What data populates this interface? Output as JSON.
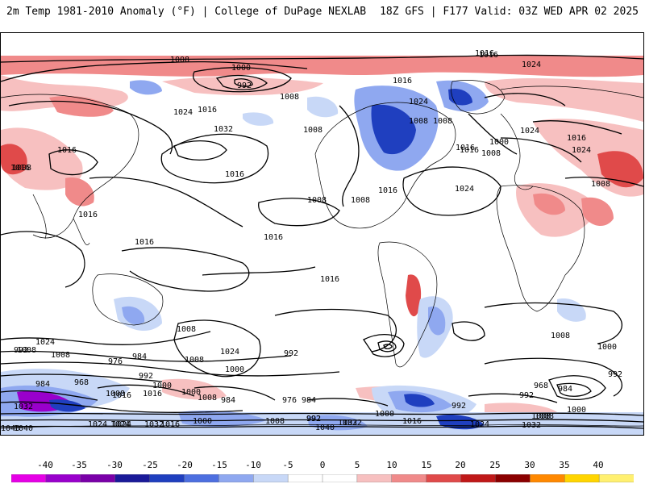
{
  "header": {
    "left_title": "2m Temp 1981-2010 Anomaly (°F) | College of DuPage NEXLAB",
    "right_title": "18Z GFS | F177 Valid: 03Z WED APR 02 2025"
  },
  "colorbar": {
    "ticks": [
      "-40",
      "-35",
      "-30",
      "-25",
      "-20",
      "-15",
      "-10",
      "-5",
      "0",
      "5",
      "10",
      "15",
      "20",
      "25",
      "30",
      "35",
      "40"
    ],
    "colors": [
      "#e600e6",
      "#9900cc",
      "#7a00a8",
      "#1a1a99",
      "#1f3fbf",
      "#4d6fe0",
      "#8fa8f0",
      "#c8d8f7",
      "#ffffff",
      "#ffffff",
      "#f7c0c0",
      "#f08a8a",
      "#e04a4a",
      "#c01818",
      "#8b0000",
      "#ff8800",
      "#ffd500",
      "#fff070"
    ]
  },
  "map": {
    "colors": {
      "warm_light": "#f7c0c0",
      "warm_mid": "#f08a8a",
      "warm_strong": "#e04a4a",
      "cold_light": "#c8d8f7",
      "cold_mid": "#8fa8f0",
      "cold_strong": "#1f3fbf",
      "cold_extreme": "#9900cc",
      "isobar": "#000000",
      "coast": "#000000"
    },
    "isobar_labels": [
      {
        "text": "1016"
      },
      {
        "text": "1024"
      },
      {
        "text": "1008"
      },
      {
        "text": "1000"
      },
      {
        "text": "992"
      },
      {
        "text": "1008"
      },
      {
        "text": "1008"
      },
      {
        "text": "1016"
      },
      {
        "text": "1024"
      },
      {
        "text": "1032"
      },
      {
        "text": "1016"
      },
      {
        "text": "1008"
      },
      {
        "text": "1016"
      },
      {
        "text": "1008"
      },
      {
        "text": "1016"
      },
      {
        "text": "1024"
      },
      {
        "text": "1016"
      },
      {
        "text": "1024"
      },
      {
        "text": "1024"
      },
      {
        "text": "1016"
      },
      {
        "text": "1016"
      },
      {
        "text": "1008"
      },
      {
        "text": "1016"
      },
      {
        "text": "1008"
      },
      {
        "text": "1016"
      },
      {
        "text": "1008"
      },
      {
        "text": "1000"
      },
      {
        "text": "1016"
      },
      {
        "text": "1008"
      },
      {
        "text": "1008"
      },
      {
        "text": "1016"
      },
      {
        "text": "1016"
      },
      {
        "text": "1016"
      },
      {
        "text": "1016"
      },
      {
        "text": "1024"
      },
      {
        "text": "1024"
      },
      {
        "text": "1000"
      },
      {
        "text": "1008"
      },
      {
        "text": "992"
      },
      {
        "text": "976"
      },
      {
        "text": "984"
      },
      {
        "text": "992"
      },
      {
        "text": "1000"
      },
      {
        "text": "1008"
      },
      {
        "text": "1016"
      },
      {
        "text": "1024"
      },
      {
        "text": "992"
      },
      {
        "text": "1008"
      },
      {
        "text": "968"
      },
      {
        "text": "984"
      },
      {
        "text": "1000"
      },
      {
        "text": "1008"
      },
      {
        "text": "984"
      },
      {
        "text": "976"
      },
      {
        "text": "984"
      },
      {
        "text": "992"
      },
      {
        "text": "1000"
      },
      {
        "text": "992"
      },
      {
        "text": "992"
      },
      {
        "text": "968"
      },
      {
        "text": "984"
      },
      {
        "text": "992"
      },
      {
        "text": "1008"
      },
      {
        "text": "1000"
      },
      {
        "text": "1008"
      },
      {
        "text": "1016"
      },
      {
        "text": "1024"
      },
      {
        "text": "1032"
      },
      {
        "text": "1040"
      },
      {
        "text": "1032"
      },
      {
        "text": "1024"
      },
      {
        "text": "1016"
      },
      {
        "text": "1000"
      },
      {
        "text": "1008"
      },
      {
        "text": "992"
      },
      {
        "text": "1040"
      },
      {
        "text": "1032"
      },
      {
        "text": "1016"
      },
      {
        "text": "1024"
      },
      {
        "text": "1032"
      },
      {
        "text": "1008"
      },
      {
        "text": "1000"
      },
      {
        "text": "1040"
      },
      {
        "text": "1024"
      },
      {
        "text": "1032"
      },
      {
        "text": "1008"
      },
      {
        "text": "1008"
      }
    ]
  }
}
